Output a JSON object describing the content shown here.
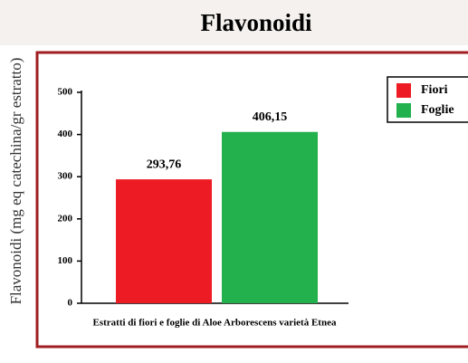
{
  "chart_data": {
    "type": "bar",
    "title": "Flavonoidi",
    "ylabel": "Flavonoidi (mg eq catechina/gr estratto)",
    "xlabel": "Estratti di fiori e foglie di Aloe Arborescens varietà Etnea",
    "series": [
      {
        "name": "Fiori",
        "color": "#ed1c24",
        "values": [
          293.76
        ],
        "value_labels": [
          "293,76"
        ]
      },
      {
        "name": "Foglie",
        "color": "#22b14c",
        "values": [
          406.15
        ],
        "value_labels": [
          "406,15"
        ]
      }
    ],
    "ylim": [
      0,
      500
    ],
    "yticks": [
      0,
      100,
      200,
      300,
      400,
      500
    ],
    "legend": "upper right"
  }
}
